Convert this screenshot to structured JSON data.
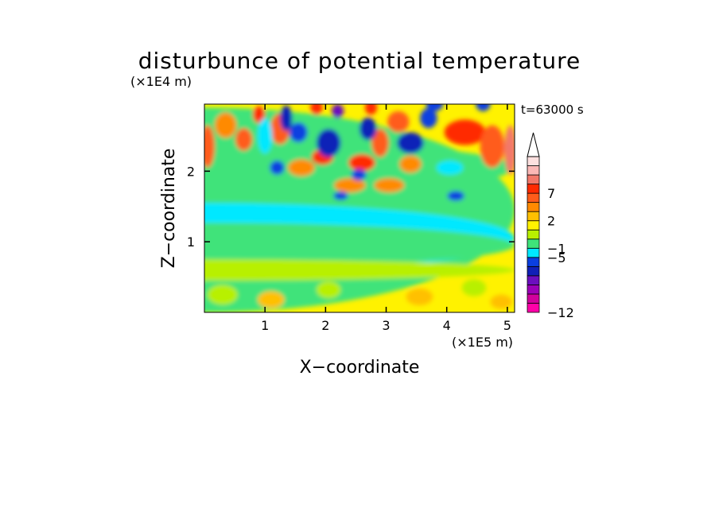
{
  "chart_data": {
    "type": "heatmap",
    "title": "disturbunce of potential temperature",
    "time_label": "t=63000 s",
    "xlabel": "X−coordinate",
    "ylabel": "Z−coordinate",
    "x_unit": "(×1E5 m)",
    "y_unit": "(×1E4 m)",
    "x_ticks": [
      1,
      2,
      3,
      4,
      5
    ],
    "x_tick_labels": [
      "1",
      "2",
      "3",
      "4",
      "5"
    ],
    "y_ticks": [
      1,
      2
    ],
    "y_tick_labels": [
      "1",
      "2"
    ],
    "xlim": [
      0,
      5.12
    ],
    "ylim": [
      0,
      2.95
    ],
    "colorbar": {
      "colors": [
        "#ff00a8",
        "#d1009d",
        "#9c00b8",
        "#6b0fbf",
        "#1020b8",
        "#0a3fe0",
        "#00e8ff",
        "#3fe37a",
        "#b8f000",
        "#fff200",
        "#ffc000",
        "#ff8a00",
        "#ff5c1a",
        "#ff2a00",
        "#f2786a",
        "#fbb8b6",
        "#fde0df"
      ],
      "labels": [
        "−12",
        "−5",
        "−1",
        "2",
        "7"
      ],
      "label_levels": [
        -12,
        -5,
        -1,
        2,
        7
      ],
      "extend": "max"
    }
  }
}
